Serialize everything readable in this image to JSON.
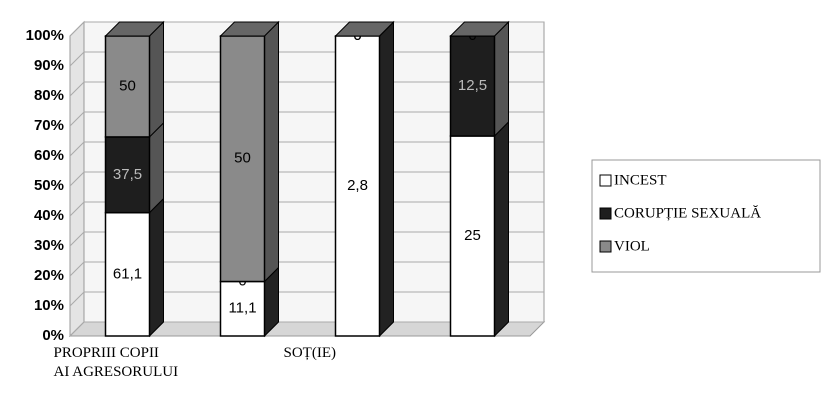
{
  "chart_data": {
    "type": "bar",
    "stacked_percent": true,
    "categories": [
      "PROPRIII COPII\nAI AGRESORULUI",
      null,
      "SOȚ(IE)",
      null
    ],
    "series": [
      {
        "name": "INCEST",
        "color": "#ffffff",
        "values": [
          61.1,
          11.1,
          2.8,
          25
        ],
        "value_labels": [
          "61,1",
          "11,1",
          "2,8",
          "25"
        ]
      },
      {
        "name": "CORUPȚIE SEXUALĂ",
        "color": "#1e1e1e",
        "values": [
          37.5,
          0,
          0,
          12.5
        ],
        "value_labels": [
          "37,5",
          "0",
          "0",
          "12,5"
        ]
      },
      {
        "name": "VIOL",
        "color": "#8a8a8a",
        "values": [
          50,
          50,
          0,
          0
        ],
        "value_labels": [
          "50",
          "50",
          "0",
          "0"
        ]
      }
    ],
    "ylim": [
      0,
      100
    ],
    "yticks": [
      {
        "value": 0,
        "label": "0%"
      },
      {
        "value": 10,
        "label": "10%"
      },
      {
        "value": 20,
        "label": "20%"
      },
      {
        "value": 30,
        "label": "30%"
      },
      {
        "value": 40,
        "label": "40%"
      },
      {
        "value": 50,
        "label": "50%"
      },
      {
        "value": 60,
        "label": "60%"
      },
      {
        "value": 70,
        "label": "70%"
      },
      {
        "value": 80,
        "label": "80%"
      },
      {
        "value": 90,
        "label": "90%"
      },
      {
        "value": 100,
        "label": "100%"
      }
    ],
    "grid": true
  }
}
